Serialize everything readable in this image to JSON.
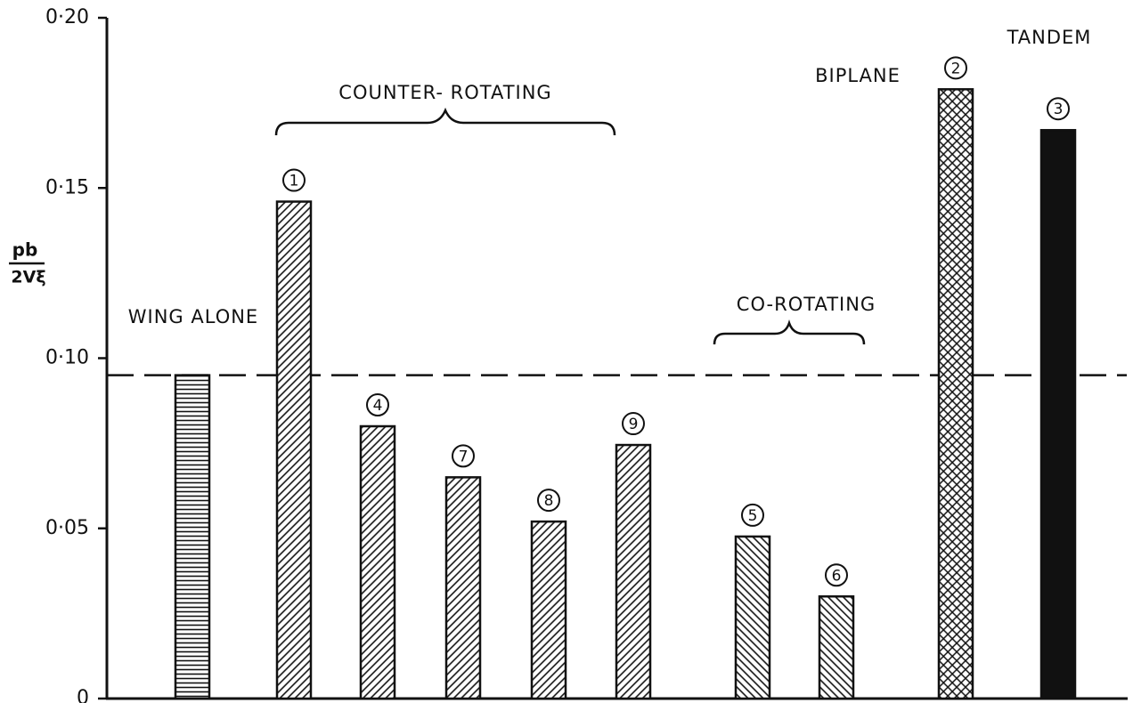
{
  "chart_data": {
    "type": "bar",
    "categories": [
      null,
      "1",
      "4",
      "7",
      "8",
      "9",
      "5",
      "6",
      "2",
      "3"
    ],
    "values": [
      0.095,
      0.146,
      0.08,
      0.065,
      0.052,
      0.0745,
      0.0476,
      0.03,
      0.179,
      0.167
    ],
    "patterns": [
      "horizontal",
      "diagonal",
      "diagonal",
      "diagonal",
      "diagonal",
      "diagonal",
      "backdiagonal",
      "backdiagonal",
      "crosshatch",
      "solid"
    ],
    "color": "#111111",
    "ylim": [
      0,
      0.2
    ],
    "yticks": [
      0,
      {
        "value": 0.05,
        "label": "0·05"
      },
      {
        "value": 0.1,
        "label": "0·10"
      },
      {
        "value": 0.15,
        "label": "0·15"
      },
      {
        "value": 0.2,
        "label": "0·20"
      }
    ],
    "ylabel_numerator": "pb",
    "ylabel_denominator": "2Vξ",
    "reference_line": 0.095,
    "annotations": [
      "WING ALONE",
      "COUNTER- ROTATING",
      "CO-ROTATING",
      "BIPLANE",
      "TANDEM"
    ]
  }
}
